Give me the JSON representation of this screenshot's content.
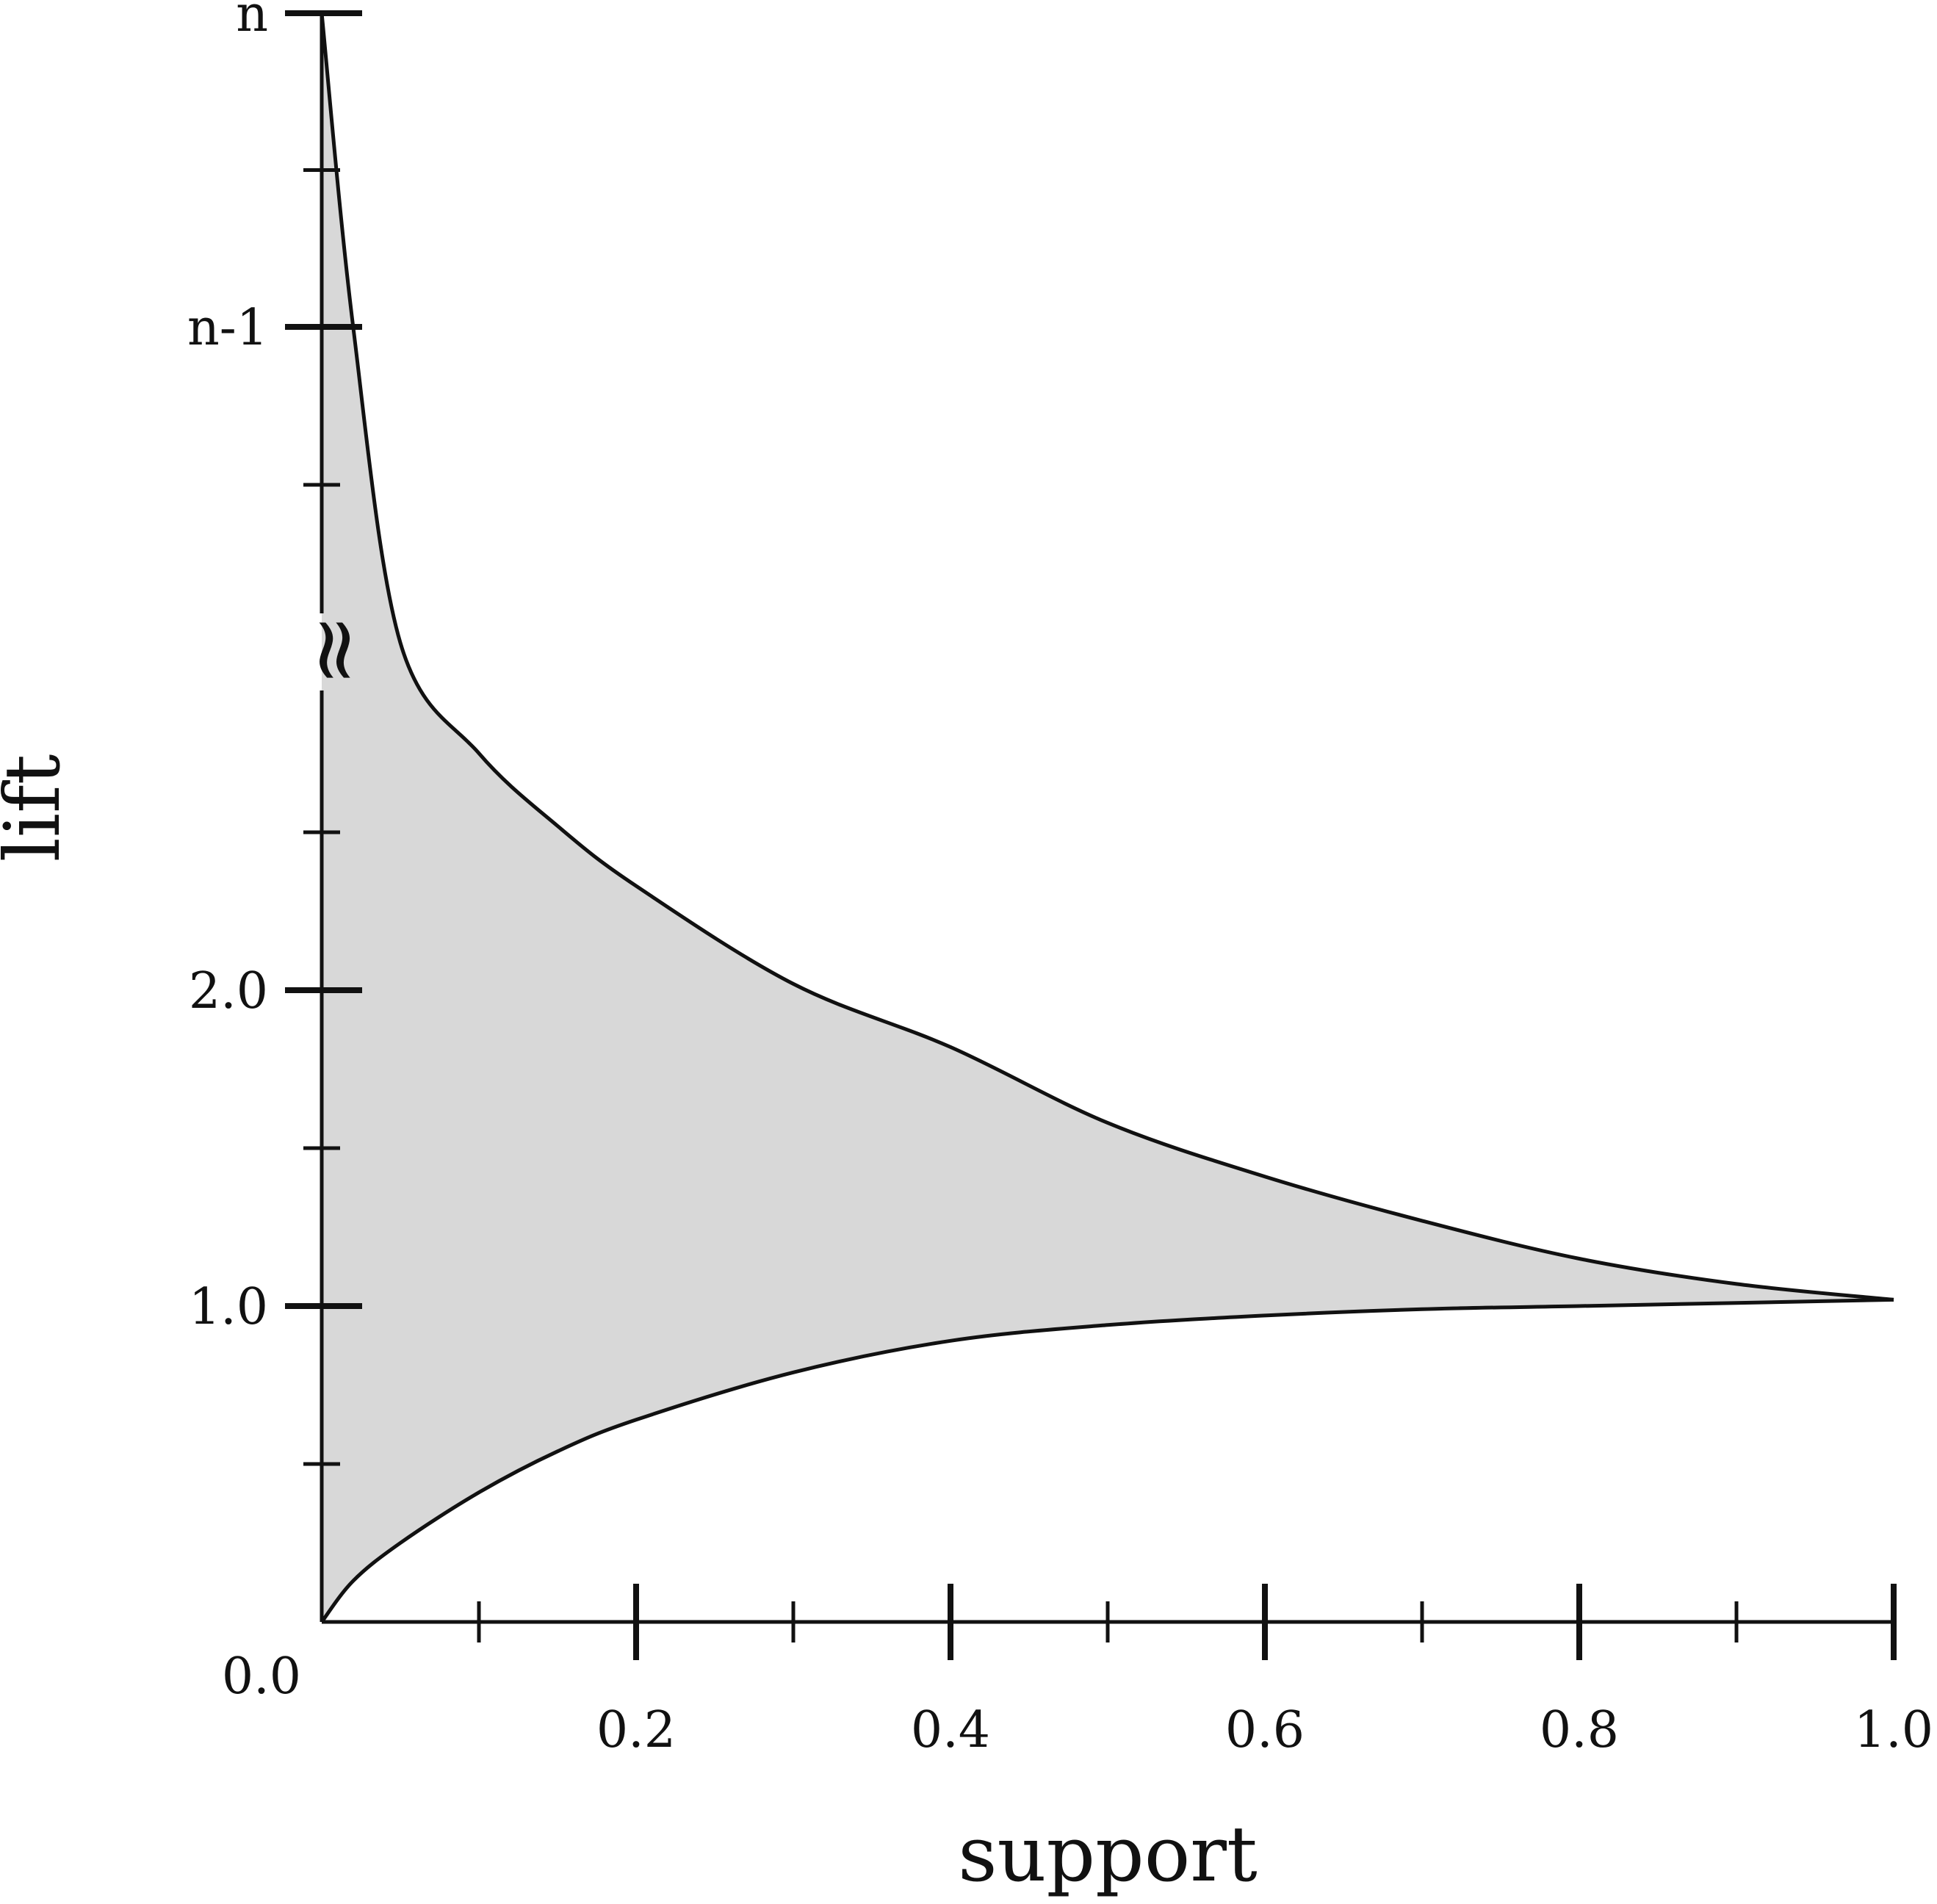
{
  "chart_data": {
    "type": "area",
    "xlabel": "support",
    "ylabel": "lift",
    "xlim": [
      0,
      1
    ],
    "x_ticks": [
      {
        "value": 0.2,
        "label": "0.2"
      },
      {
        "value": 0.4,
        "label": "0.4"
      },
      {
        "value": 0.6,
        "label": "0.6"
      },
      {
        "value": 0.8,
        "label": "0.8"
      },
      {
        "value": 1.0,
        "label": "1.0"
      }
    ],
    "x_minor_ticks": [
      0.1,
      0.3,
      0.5,
      0.7,
      0.9
    ],
    "origin_label": "0.0",
    "y_ticks_lower": [
      {
        "value": 1.0,
        "label": "1.0"
      },
      {
        "value": 2.0,
        "label": "2.0"
      }
    ],
    "y_minor_ticks_lower": [
      0.5,
      1.5,
      2.5
    ],
    "y_ticks_upper": [
      {
        "value": "n-1",
        "label": "n-1"
      },
      {
        "value": "n",
        "label": "n"
      }
    ],
    "axis_break": "≈",
    "grid": false,
    "legend": "none",
    "fill_color": "#d8d8d8",
    "line_color": "#111111",
    "series": [
      {
        "role": "upper-bound",
        "x": [
          0.0,
          0.02,
          0.05,
          0.1,
          0.15,
          0.2,
          0.3,
          0.4,
          0.5,
          0.6,
          0.7,
          0.8,
          0.9,
          1.0
        ],
        "y": [
          "n",
          "n-1",
          3.1,
          2.75,
          2.52,
          2.33,
          2.02,
          1.82,
          1.58,
          1.41,
          1.27,
          1.15,
          1.07,
          1.02
        ]
      },
      {
        "role": "lower-bound",
        "x": [
          0.0,
          0.02,
          0.05,
          0.1,
          0.15,
          0.2,
          0.3,
          0.4,
          0.5,
          0.6,
          0.7,
          0.8,
          0.9,
          1.0
        ],
        "y": [
          0.0,
          0.13,
          0.25,
          0.41,
          0.54,
          0.64,
          0.79,
          0.89,
          0.94,
          0.97,
          0.99,
          1.0,
          1.01,
          1.02
        ]
      }
    ]
  }
}
